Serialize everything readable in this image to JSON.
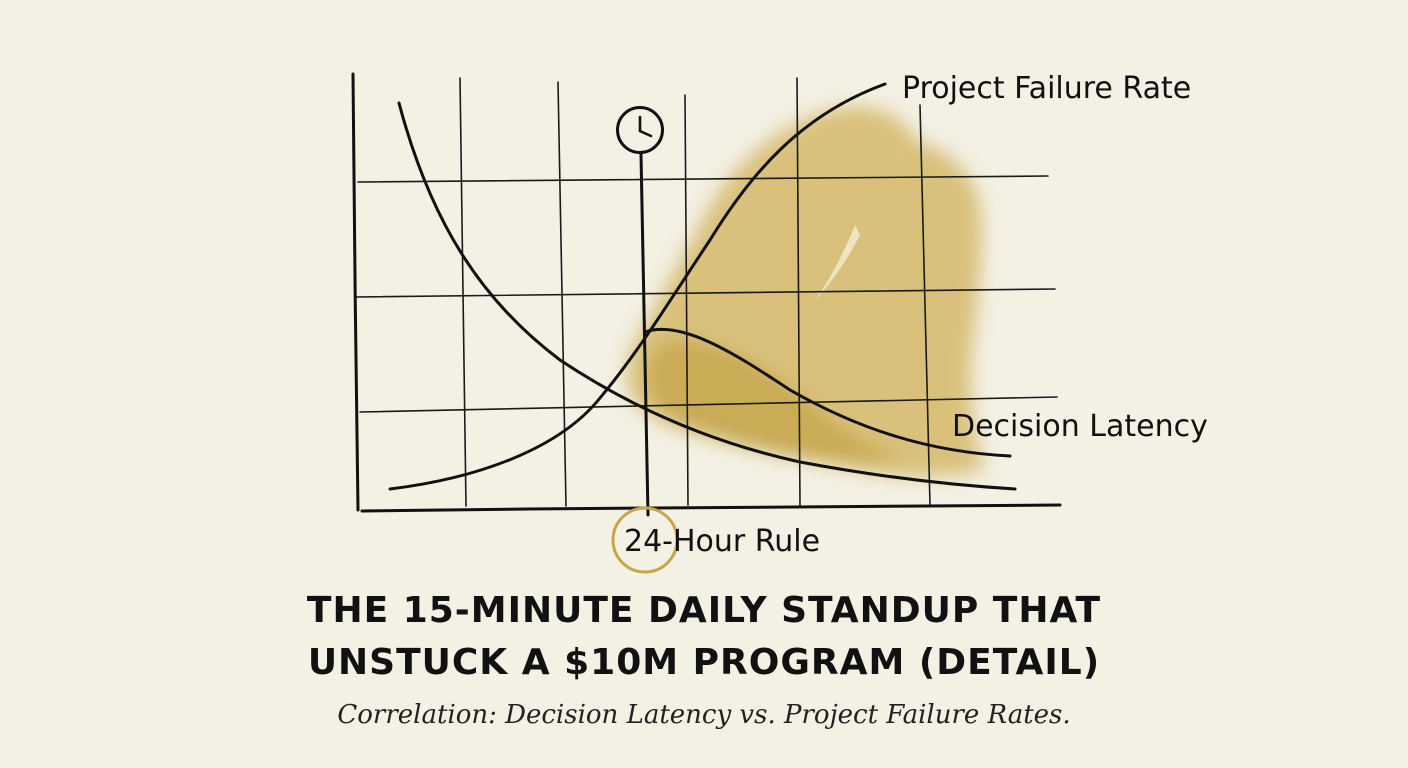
{
  "chart_data": {
    "type": "line",
    "grid": true,
    "series": [
      {
        "name": "Project Failure Rate",
        "trend": "rising"
      },
      {
        "name": "Decision Latency",
        "trend": "falling"
      }
    ],
    "markers": [
      {
        "label": "24-Hour Rule",
        "icon": "clock-icon"
      }
    ],
    "title_lines": [
      "THE 15-MINUTE DAILY STANDUP THAT",
      "UNSTUCK A $10M PROGRAM (DETAIL)"
    ],
    "subtitle": "Correlation: Decision Latency vs. Project Failure Rates.",
    "colors": {
      "background": "#f3f0e4",
      "ink": "#111111",
      "wash": "#c9a43c",
      "marker_circle": "#c9a44a"
    }
  }
}
